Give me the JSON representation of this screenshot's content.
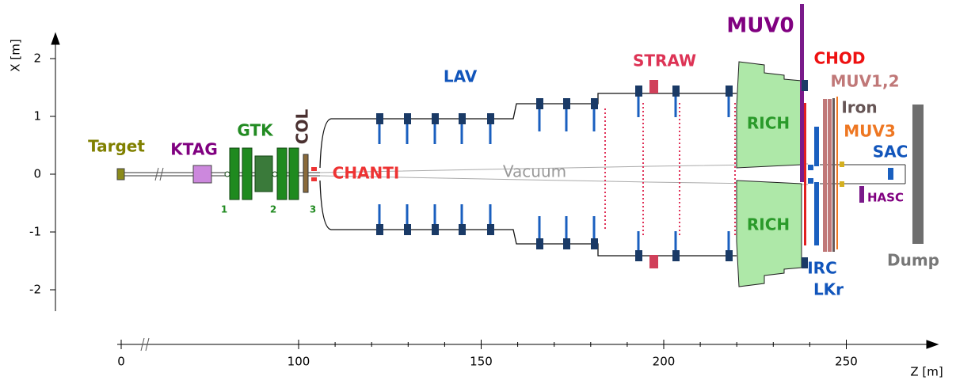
{
  "labels": {
    "target": "Target",
    "ktag": "KTAG",
    "gtk": "GTK",
    "gtk1": "1",
    "gtk2": "2",
    "gtk3": "3",
    "col": "COL",
    "chanti": "CHANTI",
    "vacuum": "Vacuum",
    "lav": "LAV",
    "straw": "STRAW",
    "muv0": "MUV0",
    "chod": "CHOD",
    "muv12": "MUV1,2",
    "iron": "Iron",
    "muv3": "MUV3",
    "sac": "SAC",
    "rich_top": "RICH",
    "rich_bottom": "RICH",
    "irc": "IRC",
    "lkr": "LKr",
    "hasc": "HASC",
    "dump": "Dump"
  },
  "x_axis": {
    "label": "Z [m]",
    "ticks": [
      0,
      100,
      150,
      200,
      250
    ]
  },
  "y_axis": {
    "label": "X [m]",
    "ticks": [
      2,
      1,
      0,
      -1,
      -2
    ]
  }
}
